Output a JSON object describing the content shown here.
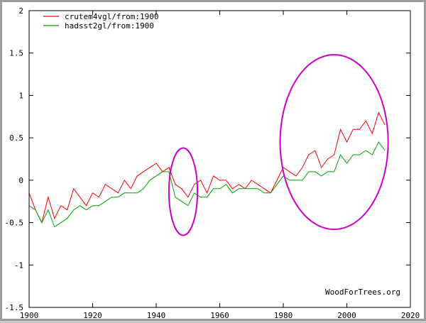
{
  "chart_data": {
    "type": "line",
    "xlim": [
      1900,
      2020
    ],
    "ylim": [
      -1.5,
      2
    ],
    "x_ticks": [
      "1900",
      "1920",
      "1940",
      "1960",
      "1980",
      "2000",
      "2020"
    ],
    "y_ticks": [
      "2",
      "1.5",
      "1",
      "0.5",
      "0",
      "-0.5",
      "-1",
      "-1.5"
    ],
    "grid": false,
    "legend_position": "top-left",
    "credit": "WoodForTrees.org",
    "series": [
      {
        "name": "crutem4vgl/from:1900",
        "color": "#ff0000",
        "x": [
          1900,
          1902,
          1904,
          1906,
          1908,
          1910,
          1912,
          1914,
          1916,
          1918,
          1920,
          1922,
          1924,
          1926,
          1928,
          1930,
          1932,
          1934,
          1936,
          1938,
          1940,
          1942,
          1944,
          1946,
          1948,
          1950,
          1952,
          1954,
          1956,
          1958,
          1960,
          1962,
          1964,
          1966,
          1968,
          1970,
          1972,
          1974,
          1976,
          1978,
          1980,
          1982,
          1984,
          1986,
          1988,
          1990,
          1992,
          1994,
          1996,
          1998,
          2000,
          2002,
          2004,
          2006,
          2008,
          2010,
          2012
        ],
        "y": [
          -0.15,
          -0.35,
          -0.5,
          -0.2,
          -0.45,
          -0.3,
          -0.35,
          -0.1,
          -0.2,
          -0.3,
          -0.15,
          -0.2,
          -0.05,
          -0.1,
          -0.15,
          0.0,
          -0.1,
          0.05,
          0.1,
          0.15,
          0.2,
          0.1,
          0.15,
          -0.05,
          -0.1,
          -0.2,
          -0.05,
          0.0,
          -0.15,
          0.05,
          0.0,
          0.0,
          -0.1,
          -0.05,
          -0.1,
          0.0,
          -0.05,
          -0.1,
          -0.15,
          0.0,
          0.15,
          0.1,
          0.05,
          0.15,
          0.3,
          0.35,
          0.15,
          0.25,
          0.3,
          0.6,
          0.45,
          0.6,
          0.6,
          0.7,
          0.55,
          0.8,
          0.65
        ]
      },
      {
        "name": "hadsst2gl/from:1900",
        "color": "#00a000",
        "x": [
          1900,
          1902,
          1904,
          1906,
          1908,
          1910,
          1912,
          1914,
          1916,
          1918,
          1920,
          1922,
          1924,
          1926,
          1928,
          1930,
          1932,
          1934,
          1936,
          1938,
          1940,
          1942,
          1944,
          1946,
          1948,
          1950,
          1952,
          1954,
          1956,
          1958,
          1960,
          1962,
          1964,
          1966,
          1968,
          1970,
          1972,
          1974,
          1976,
          1978,
          1980,
          1982,
          1984,
          1986,
          1988,
          1990,
          1992,
          1994,
          1996,
          1998,
          2000,
          2002,
          2004,
          2006,
          2008,
          2010,
          2012
        ],
        "y": [
          -0.3,
          -0.35,
          -0.5,
          -0.35,
          -0.55,
          -0.5,
          -0.45,
          -0.35,
          -0.3,
          -0.35,
          -0.3,
          -0.3,
          -0.25,
          -0.2,
          -0.2,
          -0.15,
          -0.15,
          -0.15,
          -0.1,
          0.0,
          0.05,
          0.1,
          0.1,
          -0.2,
          -0.25,
          -0.3,
          -0.15,
          -0.2,
          -0.2,
          -0.1,
          -0.1,
          -0.05,
          -0.15,
          -0.1,
          -0.1,
          -0.1,
          -0.1,
          -0.15,
          -0.15,
          -0.05,
          0.05,
          0.0,
          0.0,
          0.0,
          0.1,
          0.1,
          0.05,
          0.1,
          0.1,
          0.3,
          0.2,
          0.3,
          0.3,
          0.35,
          0.3,
          0.45,
          0.35
        ]
      }
    ],
    "annotations": [
      {
        "shape": "ellipse",
        "color": "#cc00cc",
        "x_range": [
          1944,
          1953
        ],
        "y_range": [
          -0.65,
          0.38
        ]
      },
      {
        "shape": "ellipse",
        "color": "#cc00cc",
        "x_range": [
          1979,
          2013
        ],
        "y_range": [
          -0.58,
          1.48
        ]
      }
    ]
  }
}
